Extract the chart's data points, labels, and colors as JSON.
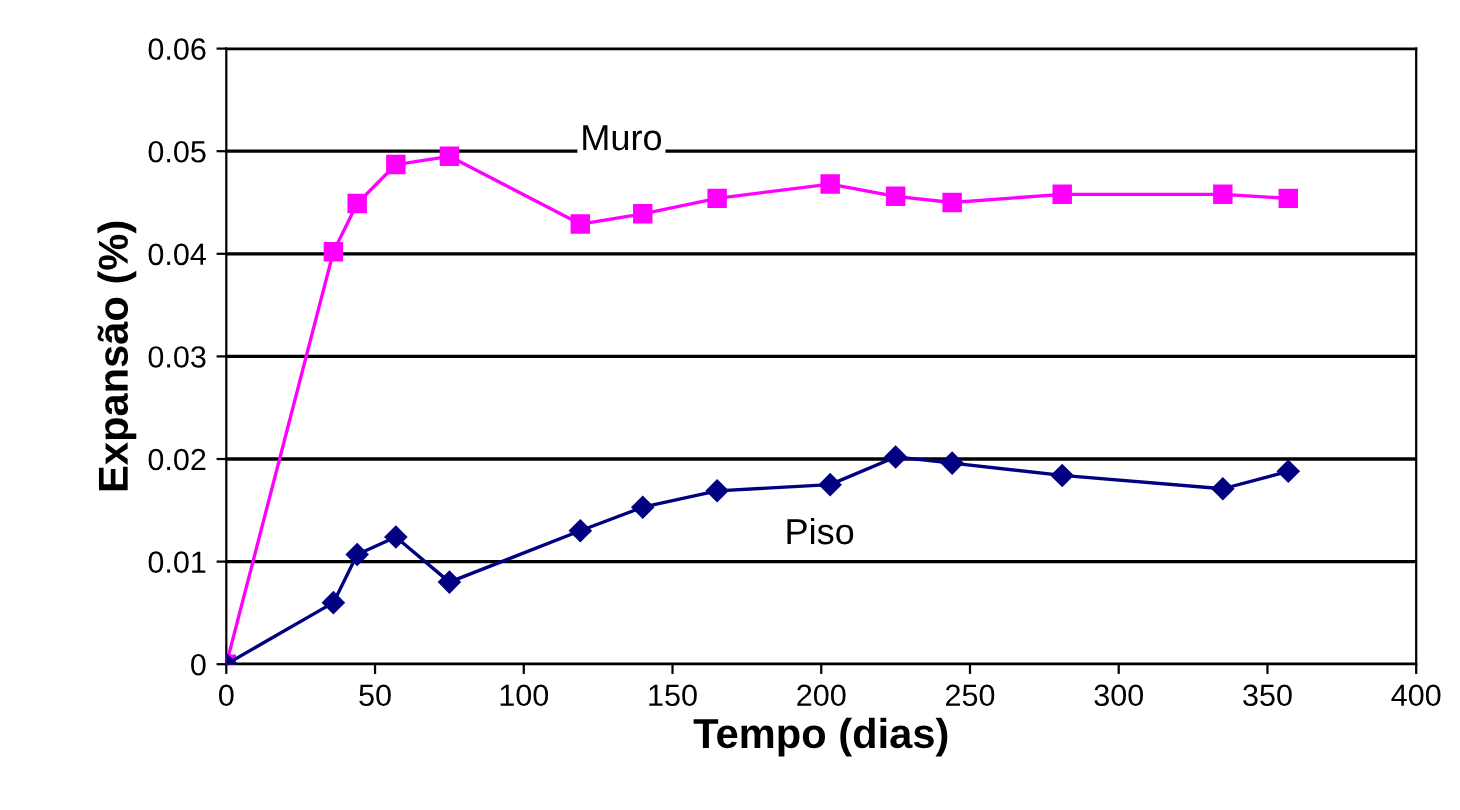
{
  "chart_data": {
    "type": "line",
    "xlabel": "Tempo (dias)",
    "ylabel": "Expansão (%)",
    "xlim": [
      0,
      400
    ],
    "xticks": [
      0,
      50,
      100,
      150,
      200,
      250,
      300,
      350,
      400
    ],
    "ylim": [
      0,
      0.06
    ],
    "yticks": [
      0,
      0.01,
      0.02,
      0.03,
      0.04,
      0.05,
      0.06
    ],
    "grid": "y",
    "legend": false,
    "series": [
      {
        "name": "Muro",
        "color": "#ff00ff",
        "marker": "square",
        "x": [
          0,
          36,
          44,
          57,
          75,
          119,
          140,
          165,
          203,
          225,
          244,
          281,
          335,
          357
        ],
        "values": [
          0,
          0.0402,
          0.0449,
          0.0487,
          0.0495,
          0.0429,
          0.0439,
          0.0454,
          0.0468,
          0.0456,
          0.045,
          0.0458,
          0.0458,
          0.0454
        ]
      },
      {
        "name": "Piso",
        "color": "#000080",
        "marker": "diamond",
        "x": [
          0,
          36,
          44,
          57,
          75,
          119,
          140,
          165,
          203,
          225,
          244,
          281,
          335,
          357
        ],
        "values": [
          0,
          0.006,
          0.0107,
          0.0124,
          0.008,
          0.013,
          0.0153,
          0.0169,
          0.0175,
          0.0202,
          0.0196,
          0.0184,
          0.0171,
          0.0188
        ]
      }
    ]
  }
}
